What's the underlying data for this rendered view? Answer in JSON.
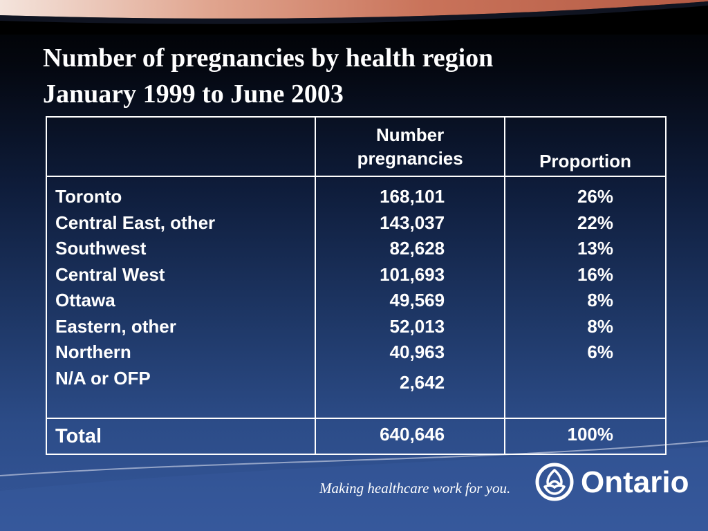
{
  "slide": {
    "title_line1": "Number of pregnancies by health region",
    "title_line2": "January 1999 to June 2003"
  },
  "table": {
    "headers": {
      "region": "",
      "number_line1": "Number",
      "number_line2": "pregnancies",
      "proportion": "Proportion"
    },
    "rows": [
      {
        "region": "Toronto",
        "number": "168,101",
        "proportion": "26%"
      },
      {
        "region": "Central East, other",
        "number": "143,037",
        "proportion": "22%"
      },
      {
        "region": "Southwest",
        "number": "82,628",
        "proportion": "13%"
      },
      {
        "region": "Central West",
        "number": "101,693",
        "proportion": "16%"
      },
      {
        "region": "Ottawa",
        "number": "49,569",
        "proportion": "8%"
      },
      {
        "region": "Eastern, other",
        "number": "52,013",
        "proportion": "8%"
      },
      {
        "region": "Northern",
        "number": "40,963",
        "proportion": "6%"
      },
      {
        "region": "N/A or OFP",
        "number": "2,642",
        "proportion": ""
      }
    ],
    "total": {
      "label": "Total",
      "number": "640,646",
      "proportion": "100%"
    }
  },
  "footer": {
    "tagline": "Making healthcare work for you.",
    "logo_text": "Ontario",
    "logo_icon": "trillium-icon"
  },
  "colors": {
    "background_top": "#000000",
    "background_bottom": "#35579a",
    "swoosh_top": "#c9735a",
    "text": "#ffffff"
  }
}
